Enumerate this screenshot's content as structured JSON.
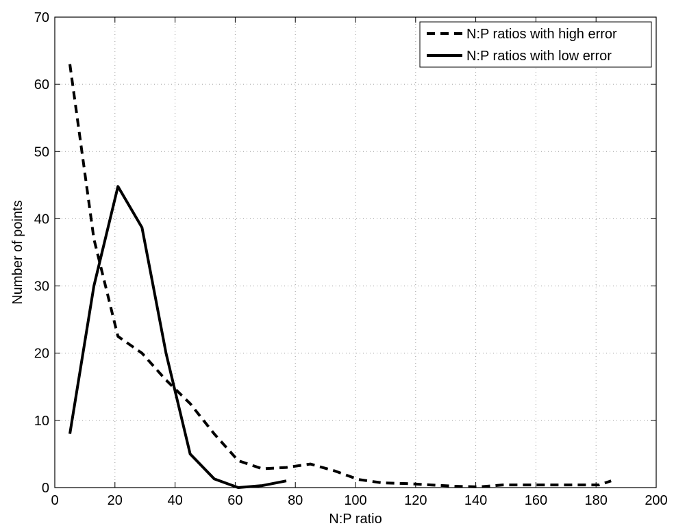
{
  "chart_data": {
    "type": "line",
    "title": "",
    "xlabel": "N:P ratio",
    "ylabel": "Number of points",
    "xlim": [
      0,
      200
    ],
    "ylim": [
      0,
      70
    ],
    "xticks": [
      0,
      20,
      40,
      60,
      80,
      100,
      120,
      140,
      160,
      180,
      200
    ],
    "yticks": [
      0,
      10,
      20,
      30,
      40,
      50,
      60,
      70
    ],
    "grid": true,
    "legend_position": "top-right",
    "series": [
      {
        "name": "N:P ratios with high error",
        "line_style": "dashed",
        "color": "#000000",
        "x": [
          5,
          13,
          21,
          29,
          37,
          45,
          53,
          61,
          69,
          77,
          85,
          93,
          101,
          109,
          117,
          125,
          133,
          141,
          149,
          157,
          165,
          173,
          181,
          185
        ],
        "y": [
          63,
          37,
          22.5,
          20,
          16,
          12.5,
          8,
          4,
          2.8,
          3,
          3.5,
          2.5,
          1.2,
          0.7,
          0.6,
          0.4,
          0.2,
          0.1,
          0.4,
          0.4,
          0.4,
          0.4,
          0.4,
          1
        ]
      },
      {
        "name": "N:P ratios with low error",
        "line_style": "solid",
        "color": "#000000",
        "x": [
          5,
          13,
          21,
          29,
          37,
          45,
          53,
          61,
          69,
          77
        ],
        "y": [
          8,
          30,
          44.8,
          38.7,
          20,
          5,
          1.3,
          0,
          0.3,
          1
        ]
      }
    ]
  }
}
